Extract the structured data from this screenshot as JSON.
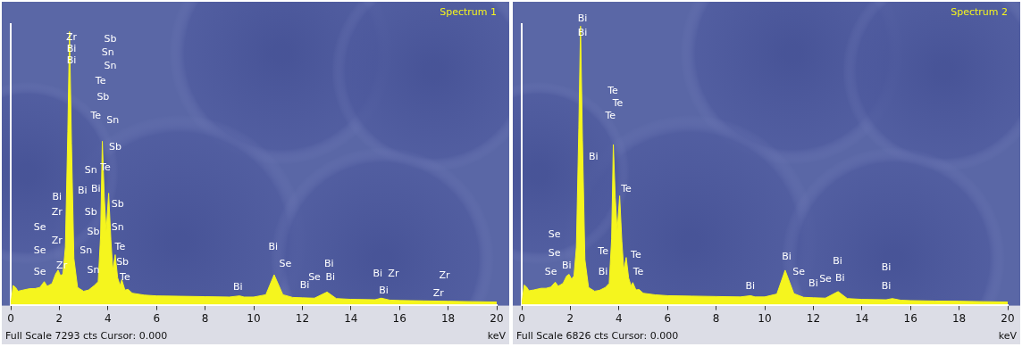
{
  "chart_data": [
    {
      "type": "area",
      "title": "Spectrum 1",
      "x_label": "keV",
      "footer": "Full Scale 7293 cts Cursor: 0.000",
      "color": "#f5f51e",
      "tick_labels": "x",
      "grid": false,
      "xlim": [
        0,
        20
      ],
      "xticks": [
        0,
        2,
        4,
        6,
        8,
        10,
        12,
        14,
        16,
        18,
        20
      ],
      "ylim": [
        0,
        7293
      ],
      "x": [
        0.0,
        0.1,
        0.2,
        0.3,
        0.5,
        0.8,
        1.0,
        1.2,
        1.38,
        1.5,
        1.7,
        1.85,
        1.95,
        2.05,
        2.15,
        2.25,
        2.35,
        2.42,
        2.5,
        2.6,
        2.75,
        3.0,
        3.2,
        3.44,
        3.6,
        3.7,
        3.77,
        3.85,
        3.93,
        4.03,
        4.12,
        4.2,
        4.3,
        4.4,
        4.5,
        4.57,
        4.7,
        4.83,
        5.0,
        5.5,
        6,
        7,
        8,
        9,
        9.42,
        9.6,
        10,
        10.5,
        10.84,
        11.2,
        11.6,
        12,
        12.5,
        13.02,
        13.4,
        14,
        15,
        15.25,
        15.6,
        16,
        17,
        18,
        19,
        20
      ],
      "values": [
        0,
        500,
        450,
        350,
        380,
        420,
        420,
        450,
        600,
        480,
        550,
        800,
        900,
        750,
        800,
        1500,
        4500,
        7100,
        4200,
        1200,
        450,
        350,
        380,
        500,
        600,
        1800,
        4250,
        2800,
        1900,
        2900,
        1700,
        900,
        1300,
        700,
        500,
        650,
        380,
        400,
        300,
        250,
        230,
        220,
        210,
        200,
        230,
        200,
        200,
        260,
        780,
        260,
        190,
        180,
        170,
        330,
        160,
        140,
        130,
        170,
        120,
        110,
        100,
        90,
        80,
        70
      ],
      "annotations": [
        {
          "text": "Zr",
          "x": 2.5,
          "y": 6950
        },
        {
          "text": "Bi",
          "x": 2.5,
          "y": 6650
        },
        {
          "text": "Bi",
          "x": 2.5,
          "y": 6350
        },
        {
          "text": "Sb",
          "x": 4.1,
          "y": 6900
        },
        {
          "text": "Sn",
          "x": 4.0,
          "y": 6550
        },
        {
          "text": "Sn",
          "x": 4.1,
          "y": 6200
        },
        {
          "text": "Te",
          "x": 3.7,
          "y": 5800
        },
        {
          "text": "Sb",
          "x": 3.8,
          "y": 5400
        },
        {
          "text": "Te",
          "x": 3.5,
          "y": 4900
        },
        {
          "text": "Sn",
          "x": 4.2,
          "y": 4800
        },
        {
          "text": "Sb",
          "x": 4.3,
          "y": 4100
        },
        {
          "text": "Sn",
          "x": 3.3,
          "y": 3500
        },
        {
          "text": "Te",
          "x": 3.9,
          "y": 3550
        },
        {
          "text": "Bi",
          "x": 2.95,
          "y": 2950
        },
        {
          "text": "Bi",
          "x": 3.5,
          "y": 3000
        },
        {
          "text": "Sb",
          "x": 3.3,
          "y": 2400
        },
        {
          "text": "Sb",
          "x": 4.4,
          "y": 2600
        },
        {
          "text": "Sb",
          "x": 3.4,
          "y": 1900
        },
        {
          "text": "Sn",
          "x": 4.4,
          "y": 2000
        },
        {
          "text": "Te",
          "x": 4.5,
          "y": 1500
        },
        {
          "text": "Sn",
          "x": 3.1,
          "y": 1400
        },
        {
          "text": "Sb",
          "x": 4.6,
          "y": 1100
        },
        {
          "text": "Sn",
          "x": 3.4,
          "y": 900
        },
        {
          "text": "Te",
          "x": 4.7,
          "y": 700
        },
        {
          "text": "Bi",
          "x": 1.9,
          "y": 2800
        },
        {
          "text": "Zr",
          "x": 1.9,
          "y": 2400
        },
        {
          "text": "Se",
          "x": 1.2,
          "y": 2000
        },
        {
          "text": "Zr",
          "x": 1.9,
          "y": 1650
        },
        {
          "text": "Se",
          "x": 1.2,
          "y": 1400
        },
        {
          "text": "Zr",
          "x": 2.1,
          "y": 1000
        },
        {
          "text": "Se",
          "x": 1.2,
          "y": 850
        },
        {
          "text": "Bi",
          "x": 9.35,
          "y": 450
        },
        {
          "text": "Bi",
          "x": 10.8,
          "y": 1500
        },
        {
          "text": "Se",
          "x": 11.3,
          "y": 1050
        },
        {
          "text": "Bi",
          "x": 12.1,
          "y": 500
        },
        {
          "text": "Se",
          "x": 12.5,
          "y": 700
        },
        {
          "text": "Bi",
          "x": 13.1,
          "y": 1050
        },
        {
          "text": "Bi",
          "x": 13.15,
          "y": 700
        },
        {
          "text": "Bi",
          "x": 15.1,
          "y": 800
        },
        {
          "text": "Zr",
          "x": 15.75,
          "y": 800
        },
        {
          "text": "Bi",
          "x": 15.35,
          "y": 350
        },
        {
          "text": "Zr",
          "x": 17.85,
          "y": 750
        },
        {
          "text": "Zr",
          "x": 17.6,
          "y": 300
        }
      ]
    },
    {
      "type": "area",
      "title": "Spectrum 2",
      "x_label": "keV",
      "footer": "Full Scale 6826 cts Cursor: 0.000",
      "color": "#f5f51e",
      "tick_labels": "x",
      "grid": false,
      "xlim": [
        0,
        20
      ],
      "xticks": [
        0,
        2,
        4,
        6,
        8,
        10,
        12,
        14,
        16,
        18,
        20
      ],
      "ylim": [
        0,
        6826
      ],
      "x": [
        0.0,
        0.1,
        0.2,
        0.3,
        0.5,
        0.8,
        1.0,
        1.2,
        1.38,
        1.5,
        1.7,
        1.85,
        1.95,
        2.05,
        2.15,
        2.25,
        2.35,
        2.42,
        2.5,
        2.6,
        2.75,
        3.0,
        3.2,
        3.44,
        3.6,
        3.7,
        3.77,
        3.85,
        3.93,
        4.03,
        4.12,
        4.2,
        4.3,
        4.4,
        4.5,
        4.57,
        4.7,
        4.83,
        5.0,
        5.5,
        6,
        7,
        8,
        9,
        9.42,
        9.6,
        10,
        10.5,
        10.84,
        11.2,
        11.6,
        12,
        12.5,
        13.02,
        13.4,
        14,
        15,
        15.25,
        15.6,
        16,
        17,
        18,
        19,
        20
      ],
      "values": [
        0,
        480,
        430,
        340,
        360,
        400,
        400,
        430,
        550,
        450,
        520,
        700,
        740,
        620,
        700,
        1400,
        4300,
        6780,
        4000,
        1100,
        420,
        330,
        350,
        420,
        520,
        1600,
        3900,
        2600,
        1800,
        2650,
        1550,
        850,
        1150,
        650,
        460,
        540,
        360,
        370,
        280,
        240,
        220,
        210,
        200,
        190,
        220,
        190,
        190,
        260,
        840,
        270,
        180,
        170,
        160,
        320,
        150,
        130,
        120,
        150,
        110,
        100,
        90,
        85,
        75,
        65
      ],
      "annotations": [
        {
          "text": "Bi",
          "x": 2.5,
          "y": 6950
        },
        {
          "text": "Bi",
          "x": 2.5,
          "y": 6600
        },
        {
          "text": "Te",
          "x": 3.75,
          "y": 5200
        },
        {
          "text": "Te",
          "x": 3.95,
          "y": 4900
        },
        {
          "text": "Te",
          "x": 3.65,
          "y": 4600
        },
        {
          "text": "Bi",
          "x": 2.95,
          "y": 3600
        },
        {
          "text": "Te",
          "x": 4.3,
          "y": 2800
        },
        {
          "text": "Te",
          "x": 3.35,
          "y": 1300
        },
        {
          "text": "Bi",
          "x": 3.35,
          "y": 800
        },
        {
          "text": "Te",
          "x": 4.7,
          "y": 1200
        },
        {
          "text": "Te",
          "x": 4.8,
          "y": 800
        },
        {
          "text": "Se",
          "x": 1.35,
          "y": 1700
        },
        {
          "text": "Se",
          "x": 1.35,
          "y": 1250
        },
        {
          "text": "Se",
          "x": 1.2,
          "y": 800
        },
        {
          "text": "Bi",
          "x": 1.85,
          "y": 950
        },
        {
          "text": "Bi",
          "x": 9.4,
          "y": 450
        },
        {
          "text": "Bi",
          "x": 10.9,
          "y": 1150
        },
        {
          "text": "Se",
          "x": 11.4,
          "y": 800
        },
        {
          "text": "Bi",
          "x": 12.0,
          "y": 500
        },
        {
          "text": "Se",
          "x": 12.5,
          "y": 620
        },
        {
          "text": "Bi",
          "x": 13.0,
          "y": 1050
        },
        {
          "text": "Bi",
          "x": 13.1,
          "y": 650
        },
        {
          "text": "Bi",
          "x": 15.0,
          "y": 900
        },
        {
          "text": "Bi",
          "x": 15.0,
          "y": 450
        }
      ]
    }
  ]
}
